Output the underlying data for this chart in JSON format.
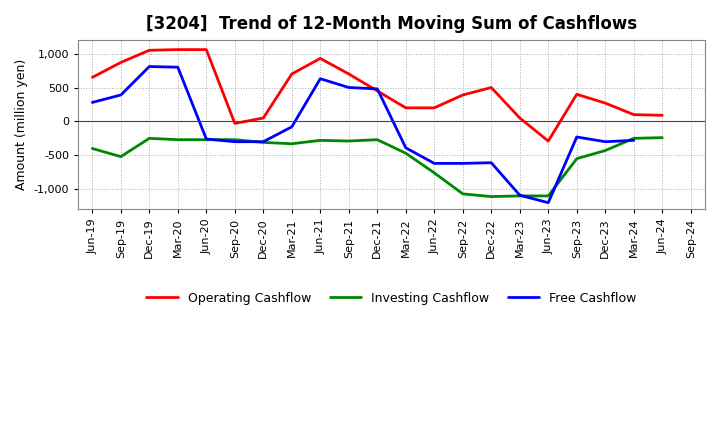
{
  "title": "[3204]  Trend of 12-Month Moving Sum of Cashflows",
  "ylabel": "Amount (million yen)",
  "xlabels": [
    "Jun-19",
    "Sep-19",
    "Dec-19",
    "Mar-20",
    "Jun-20",
    "Sep-20",
    "Dec-20",
    "Mar-21",
    "Jun-21",
    "Sep-21",
    "Dec-21",
    "Mar-22",
    "Jun-22",
    "Sep-22",
    "Dec-22",
    "Mar-23",
    "Jun-23",
    "Sep-23",
    "Dec-23",
    "Mar-24",
    "Jun-24",
    "Sep-24"
  ],
  "operating": [
    650,
    870,
    1050,
    1060,
    1060,
    -30,
    50,
    700,
    930,
    700,
    450,
    200,
    200,
    390,
    500,
    50,
    -290,
    400,
    270,
    100,
    90,
    null
  ],
  "investing": [
    -400,
    -520,
    -250,
    -270,
    -270,
    -270,
    -310,
    -330,
    -280,
    -290,
    -270,
    -470,
    -760,
    -1070,
    -1110,
    -1100,
    -1100,
    -550,
    -430,
    -250,
    -240,
    null
  ],
  "free": [
    280,
    390,
    810,
    800,
    -260,
    -300,
    -300,
    -80,
    630,
    500,
    480,
    -390,
    -620,
    -620,
    -610,
    -1090,
    -1200,
    -230,
    -300,
    -280,
    null,
    null
  ],
  "operating_color": "#ff0000",
  "investing_color": "#008800",
  "free_color": "#0000ff",
  "ylim": [
    -1300,
    1200
  ],
  "yticks": [
    -1000,
    -500,
    0,
    500,
    1000
  ],
  "background_color": "#ffffff",
  "grid_color": "#999999"
}
